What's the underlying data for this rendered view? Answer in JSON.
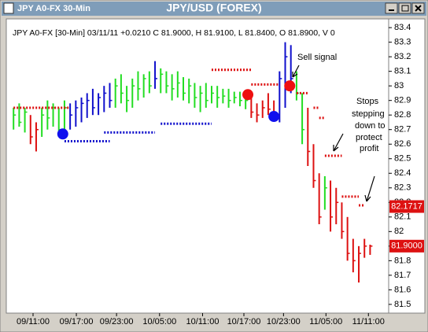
{
  "window": {
    "caption": "JPY A0-FX 30-Min"
  },
  "chart_data": {
    "type": "ohlc",
    "title": "JPY/USD (FOREX)",
    "info": "JPY A0-FX [30-Min] 03/11/11  +0.0210 C 81.9000, H 81.9100, L 81.8400, O 81.8900, V 0",
    "highs": [
      82.85,
      82.88,
      82.85,
      82.8,
      82.75,
      82.85,
      82.9,
      82.88,
      82.85,
      82.9,
      82.88,
      82.9,
      82.92,
      82.95,
      82.98,
      82.95,
      83.0,
      83.02,
      83.05,
      83.08,
      83.0,
      83.05,
      83.1,
      83.08,
      83.1,
      83.17,
      83.12,
      83.1,
      83.08,
      83.1,
      83.06,
      83.05,
      83.02,
      83.0,
      83.02,
      83.0,
      83.0,
      82.98,
      82.98,
      82.96,
      82.96,
      82.95,
      82.92,
      82.88,
      82.9,
      82.95,
      82.9,
      83.1,
      83.3,
      83.28,
      83.1,
      82.95,
      82.85,
      82.6,
      82.4,
      82.38,
      82.35,
      82.3,
      82.2,
      82.1,
      81.95,
      81.9,
      81.95,
      81.91
    ],
    "lows": [
      82.7,
      82.72,
      82.68,
      82.6,
      82.55,
      82.65,
      82.7,
      82.72,
      82.65,
      82.68,
      82.7,
      82.72,
      82.75,
      82.78,
      82.8,
      82.8,
      82.82,
      82.85,
      82.85,
      82.88,
      82.82,
      82.85,
      82.9,
      82.92,
      82.95,
      82.98,
      82.95,
      82.95,
      82.9,
      82.92,
      82.9,
      82.88,
      82.85,
      82.82,
      82.85,
      82.88,
      82.85,
      82.88,
      82.85,
      82.88,
      82.86,
      82.84,
      82.78,
      82.75,
      82.78,
      82.8,
      82.78,
      82.75,
      82.85,
      82.95,
      82.9,
      82.6,
      82.45,
      82.3,
      82.05,
      82.15,
      82.0,
      82.05,
      81.95,
      81.8,
      81.72,
      81.65,
      81.82,
      81.84
    ],
    "closes": [
      82.8,
      82.75,
      82.82,
      82.65,
      82.7,
      82.8,
      82.78,
      82.85,
      82.7,
      82.85,
      82.8,
      82.85,
      82.88,
      82.9,
      82.85,
      82.92,
      82.95,
      82.9,
      83.0,
      82.95,
      82.9,
      83.0,
      82.98,
      83.05,
      83.0,
      83.05,
      83.08,
      83.0,
      82.98,
      83.02,
      82.95,
      83.0,
      82.92,
      82.95,
      82.9,
      82.95,
      82.92,
      82.93,
      82.9,
      82.92,
      82.9,
      82.9,
      82.82,
      82.8,
      82.85,
      82.84,
      82.82,
      83.05,
      83.2,
      83.05,
      82.95,
      82.7,
      82.55,
      82.35,
      82.1,
      82.3,
      82.1,
      82.2,
      82.0,
      81.85,
      81.8,
      81.85,
      81.9,
      81.9
    ],
    "colors": [
      "#22dd22",
      "#22dd22",
      "#22dd22",
      "#dd1111",
      "#dd1111",
      "#22dd22",
      "#22dd22",
      "#22dd22",
      "#22dd22",
      "#22dd22",
      "#1010cc",
      "#1010cc",
      "#1010cc",
      "#1010cc",
      "#1010cc",
      "#1010cc",
      "#1010cc",
      "#1010cc",
      "#22dd22",
      "#22dd22",
      "#22dd22",
      "#22dd22",
      "#22dd22",
      "#22dd22",
      "#22dd22",
      "#1010cc",
      "#22dd22",
      "#22dd22",
      "#22dd22",
      "#22dd22",
      "#22dd22",
      "#22dd22",
      "#22dd22",
      "#22dd22",
      "#22dd22",
      "#22dd22",
      "#22dd22",
      "#22dd22",
      "#22dd22",
      "#22dd22",
      "#22dd22",
      "#22dd22",
      "#dd1111",
      "#dd1111",
      "#dd1111",
      "#dd1111",
      "#dd1111",
      "#1010cc",
      "#1010cc",
      "#1010cc",
      "#22dd22",
      "#22dd22",
      "#dd1111",
      "#dd1111",
      "#dd1111",
      "#22dd22",
      "#dd1111",
      "#dd1111",
      "#dd1111",
      "#dd1111",
      "#dd1111",
      "#dd1111",
      "#dd1111",
      "#dd1111"
    ],
    "stops": [
      {
        "color": "#dd1111",
        "start": 0,
        "end": 10,
        "value": 82.85
      },
      {
        "color": "#1010cc",
        "start": 9,
        "end": 17,
        "value": 82.62
      },
      {
        "color": "#1010cc",
        "start": 16,
        "end": 25,
        "value": 82.68
      },
      {
        "color": "#1010cc",
        "start": 26,
        "end": 35,
        "value": 82.74
      },
      {
        "color": "#dd1111",
        "start": 35,
        "end": 42,
        "value": 83.11
      },
      {
        "color": "#dd1111",
        "start": 42,
        "end": 47,
        "value": 83.01
      },
      {
        "color": "#dd1111",
        "start": 50,
        "end": 52,
        "value": 82.95
      },
      {
        "color": "#dd1111",
        "start": 53,
        "end": 54,
        "value": 82.85
      },
      {
        "color": "#dd1111",
        "start": 54,
        "end": 55,
        "value": 82.78
      },
      {
        "color": "#dd1111",
        "start": 55,
        "end": 58,
        "value": 82.52
      },
      {
        "color": "#dd1111",
        "start": 58,
        "end": 61,
        "value": 82.24
      },
      {
        "color": "#dd1111",
        "start": 61,
        "end": 62,
        "value": 82.18
      }
    ],
    "signals": [
      {
        "color": "#1010ee",
        "x": 8.7,
        "value": 82.67
      },
      {
        "color": "#ee1111",
        "x": 41.4,
        "value": 82.94
      },
      {
        "color": "#1010ee",
        "x": 46,
        "value": 82.79
      },
      {
        "color": "#ee1111",
        "x": 48.8,
        "value": 83.0
      }
    ],
    "annotations": [
      "Sell signal",
      "Stops",
      "stepping",
      "down to",
      "protect",
      "profit"
    ],
    "price_labels": [
      {
        "value": 82.1717,
        "label": "82.1717"
      },
      {
        "value": 81.9,
        "label": "81.9000"
      }
    ],
    "xlim": [
      -1,
      66
    ],
    "xticks": [
      {
        "value": 3.45,
        "label": "09/11:00"
      },
      {
        "value": 11.1,
        "label": "09/17:00"
      },
      {
        "value": 18.2,
        "label": "09/23:00"
      },
      {
        "value": 25.8,
        "label": "10/05:00"
      },
      {
        "value": 33.4,
        "label": "10/11:00"
      },
      {
        "value": 40.7,
        "label": "10/17:00"
      },
      {
        "value": 47.7,
        "label": "10/23:00"
      },
      {
        "value": 55.2,
        "label": "11/05:00"
      },
      {
        "value": 62.7,
        "label": "11/11:00"
      }
    ],
    "ylim": [
      81.44,
      83.46
    ],
    "yticks": [
      81.5,
      81.6,
      81.7,
      81.8,
      81.9,
      82,
      82.1,
      82.2,
      82.3,
      82.4,
      82.5,
      82.6,
      82.7,
      82.8,
      82.9,
      83,
      83.1,
      83.2,
      83.3,
      83.4
    ]
  }
}
